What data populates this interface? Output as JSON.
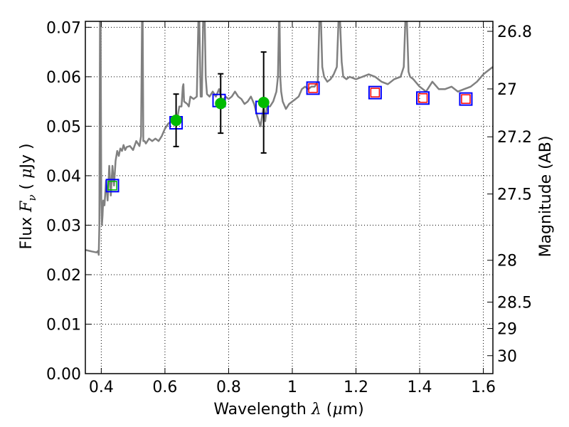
{
  "chart_data": {
    "type": "line",
    "xlabel": "Wavelength  λ (μm)",
    "ylabel": "Flux  F_ν  ( μJy )",
    "y2label": "Magnitude (AB)",
    "xlim": [
      0.35,
      1.63
    ],
    "ylim": [
      0.0,
      0.0712
    ],
    "grid": true,
    "x_ticks": [
      0.4,
      0.6,
      0.8,
      1.0,
      1.2,
      1.4,
      1.6
    ],
    "x_tick_labels": [
      "0.4",
      "0.6",
      "0.8",
      "1",
      "1.2",
      "1.4",
      "1.6"
    ],
    "y_ticks": [
      0.0,
      0.01,
      0.02,
      0.03,
      0.04,
      0.05,
      0.06,
      0.07
    ],
    "y_tick_labels": [
      "0.00",
      "0.01",
      "0.02",
      "0.03",
      "0.04",
      "0.05",
      "0.06",
      "0.07"
    ],
    "mag_ticks": [
      26.8,
      27.0,
      27.2,
      27.5,
      28.0,
      28.5,
      29.0,
      30.0
    ],
    "mag_tick_labels": [
      "26.8",
      "27",
      "27.2",
      "27.5",
      "28",
      "28.5",
      "29",
      "30"
    ],
    "series": [
      {
        "kind": "spectrum",
        "color": "#808080",
        "x": [
          0.35,
          0.37,
          0.385,
          0.39,
          0.392,
          0.394,
          0.396,
          0.398,
          0.4,
          0.402,
          0.404,
          0.406,
          0.41,
          0.415,
          0.42,
          0.425,
          0.43,
          0.435,
          0.44,
          0.445,
          0.45,
          0.455,
          0.46,
          0.465,
          0.47,
          0.475,
          0.48,
          0.49,
          0.5,
          0.51,
          0.52,
          0.525,
          0.528,
          0.53,
          0.532,
          0.536,
          0.54,
          0.55,
          0.56,
          0.57,
          0.58,
          0.59,
          0.6,
          0.61,
          0.62,
          0.63,
          0.64,
          0.645,
          0.652,
          0.656,
          0.658,
          0.66,
          0.67,
          0.675,
          0.68,
          0.69,
          0.7,
          0.705,
          0.708,
          0.712,
          0.716,
          0.72,
          0.725,
          0.728,
          0.732,
          0.74,
          0.75,
          0.76,
          0.77,
          0.78,
          0.79,
          0.8,
          0.81,
          0.82,
          0.83,
          0.84,
          0.85,
          0.86,
          0.87,
          0.88,
          0.89,
          0.9,
          0.91,
          0.915,
          0.92,
          0.93,
          0.94,
          0.95,
          0.955,
          0.958,
          0.96,
          0.962,
          0.965,
          0.97,
          0.98,
          0.99,
          1.0,
          1.01,
          1.02,
          1.03,
          1.04,
          1.05,
          1.06,
          1.07,
          1.08,
          1.085,
          1.09,
          1.094,
          1.1,
          1.11,
          1.12,
          1.13,
          1.14,
          1.145,
          1.15,
          1.155,
          1.16,
          1.17,
          1.18,
          1.2,
          1.22,
          1.24,
          1.26,
          1.28,
          1.3,
          1.32,
          1.34,
          1.35,
          1.355,
          1.36,
          1.365,
          1.37,
          1.38,
          1.4,
          1.42,
          1.44,
          1.46,
          1.48,
          1.5,
          1.52,
          1.54,
          1.56,
          1.58,
          1.6,
          1.62,
          1.63
        ],
        "y": [
          0.025,
          0.0247,
          0.0245,
          0.0248,
          0.024,
          0.03,
          0.0712,
          0.0712,
          0.035,
          0.03,
          0.032,
          0.035,
          0.034,
          0.039,
          0.035,
          0.042,
          0.036,
          0.042,
          0.038,
          0.043,
          0.045,
          0.044,
          0.0455,
          0.045,
          0.0462,
          0.0452,
          0.0458,
          0.046,
          0.0452,
          0.047,
          0.046,
          0.048,
          0.0712,
          0.0712,
          0.047,
          0.047,
          0.0465,
          0.0475,
          0.047,
          0.0475,
          0.047,
          0.048,
          0.0495,
          0.0505,
          0.051,
          0.0515,
          0.052,
          0.054,
          0.054,
          0.058,
          0.0585,
          0.055,
          0.0545,
          0.054,
          0.056,
          0.0555,
          0.056,
          0.0712,
          0.0712,
          0.056,
          0.056,
          0.0712,
          0.0712,
          0.06,
          0.0565,
          0.056,
          0.057,
          0.056,
          0.0575,
          0.055,
          0.056,
          0.0555,
          0.056,
          0.057,
          0.056,
          0.0555,
          0.0545,
          0.055,
          0.056,
          0.0545,
          0.052,
          0.05,
          0.054,
          0.051,
          0.054,
          0.054,
          0.055,
          0.057,
          0.06,
          0.0712,
          0.0712,
          0.06,
          0.057,
          0.055,
          0.0535,
          0.0545,
          0.055,
          0.0555,
          0.056,
          0.0575,
          0.058,
          0.0575,
          0.058,
          0.058,
          0.059,
          0.0712,
          0.0712,
          0.062,
          0.06,
          0.059,
          0.0595,
          0.0605,
          0.062,
          0.0712,
          0.0712,
          0.063,
          0.06,
          0.0595,
          0.06,
          0.0595,
          0.06,
          0.0605,
          0.06,
          0.059,
          0.0585,
          0.0595,
          0.06,
          0.062,
          0.0712,
          0.0712,
          0.061,
          0.06,
          0.0595,
          0.058,
          0.057,
          0.059,
          0.0575,
          0.0575,
          0.058,
          0.057,
          0.0575,
          0.058,
          0.059,
          0.0605,
          0.0615,
          0.062
        ]
      },
      {
        "kind": "model-photometry",
        "color": "#0000ff",
        "marker": "open-square",
        "x": [
          0.435,
          0.635,
          0.77,
          0.905,
          1.065,
          1.26,
          1.41,
          1.545
        ],
        "y": [
          0.038,
          0.0507,
          0.0552,
          0.0538,
          0.0577,
          0.0568,
          0.0557,
          0.0555
        ]
      },
      {
        "kind": "observed-detections",
        "color": "#00bb00",
        "marker": "filled-circle",
        "x": [
          0.635,
          0.775,
          0.91
        ],
        "y": [
          0.0512,
          0.0546,
          0.0548
        ],
        "err_low": [
          0.0053,
          0.006,
          0.0102
        ],
        "err_high": [
          0.0053,
          0.006,
          0.0102
        ]
      },
      {
        "kind": "observed-upper-limit-green",
        "color": "#00bb00",
        "marker": "open-square-small",
        "x": [
          0.435
        ],
        "y": [
          0.038
        ]
      },
      {
        "kind": "observed-upper-limits-red",
        "color": "#ff0000",
        "marker": "open-square-small",
        "x": [
          1.065,
          1.26,
          1.41,
          1.545
        ],
        "y": [
          0.0577,
          0.0568,
          0.0557,
          0.0555
        ]
      }
    ]
  }
}
